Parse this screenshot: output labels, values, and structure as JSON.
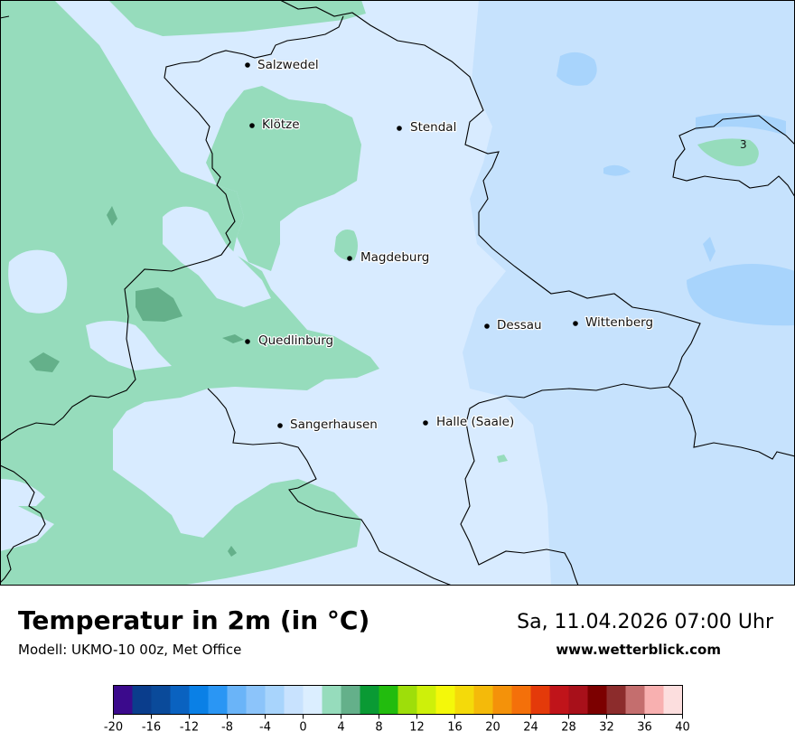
{
  "map": {
    "title": "Temperatur in 2m (in °C)",
    "model_line": "Modell: UKMO-10 00z, Met Office",
    "datetime": "Sa, 11.04.2026 07:00 Uhr",
    "website": "www.wetterblick.com",
    "contour_label": "3",
    "cities": [
      {
        "name": "Salzwedel"
      },
      {
        "name": "Klötze"
      },
      {
        "name": "Stendal"
      },
      {
        "name": "Magdeburg"
      },
      {
        "name": "Dessau"
      },
      {
        "name": "Wittenberg"
      },
      {
        "name": "Quedlinburg"
      },
      {
        "name": "Sangerhausen"
      },
      {
        "name": "Halle (Saale)"
      }
    ]
  },
  "legend": {
    "ticks": [
      "-20",
      "-16",
      "-12",
      "-8",
      "-4",
      "0",
      "4",
      "8",
      "12",
      "16",
      "20",
      "24",
      "28",
      "32",
      "36",
      "40"
    ],
    "colors": [
      "#3b0a8c",
      "#0a3d8c",
      "#0a4a9a",
      "#0a62c0",
      "#0a80e6",
      "#2a96f4",
      "#6ab4f8",
      "#8cc4fa",
      "#a8d4fc",
      "#c8e2fe",
      "#dbeeff",
      "#96dcbc",
      "#64b08a",
      "#0a9a34",
      "#22bc0e",
      "#9ede0a",
      "#cef00a",
      "#f4f80a",
      "#f4da0a",
      "#f4ba0a",
      "#f4920a",
      "#f4700a",
      "#e43a0a",
      "#c0141a",
      "#a8101a",
      "#7c0000",
      "#8c2c2c",
      "#c46e6e",
      "#f8b0b0",
      "#fcdede"
    ]
  }
}
